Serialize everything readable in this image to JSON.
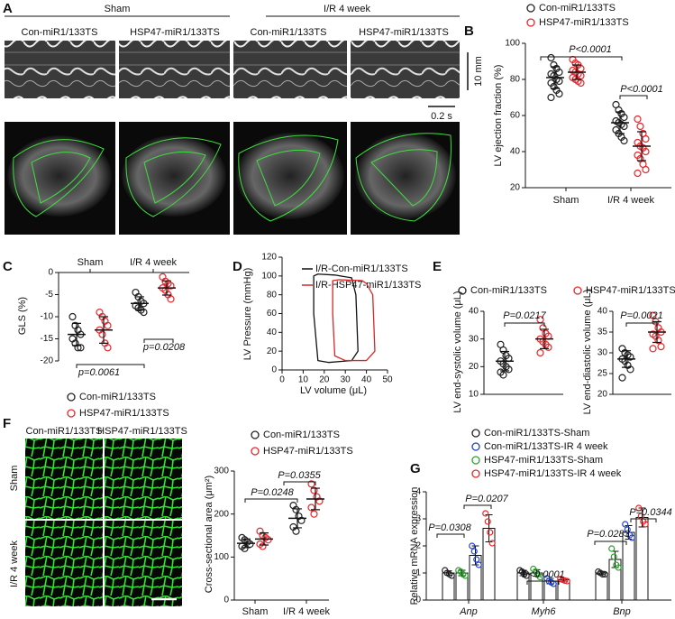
{
  "panel_letters": [
    "A",
    "B",
    "C",
    "D",
    "E",
    "F",
    "G"
  ],
  "panels": {
    "A": {
      "groups": [
        "Sham",
        "I/R 4 week"
      ],
      "columns": [
        "Con-miR1/133TS",
        "HSP47-miR1/133TS",
        "Con-miR1/133TS",
        "HSP47-miR1/133TS"
      ],
      "scale_length": "10 mm",
      "scale_time": "0.2 s"
    },
    "F": {
      "columns": [
        "Con-miR1/133TS",
        "HSP47-miR1/133TS"
      ],
      "rows": [
        "Sham",
        "I/R 4 week"
      ]
    }
  },
  "chart_data": [
    {
      "type": "dot",
      "ylabel": "LV ejection fraction (%)",
      "categories": [
        "Sham",
        "I/R 4 week"
      ],
      "ylim": [
        20,
        100
      ],
      "yticks": [
        20,
        40,
        60,
        80,
        100
      ],
      "series": [
        {
          "name": "Con-miR1/133TS",
          "color": "#222222",
          "values": [
            [
              92,
              88,
              86,
              84,
              83,
              82,
              80,
              79,
              78,
              76,
              74,
              72,
              70
            ],
            [
              66,
              63,
              61,
              59,
              57,
              56,
              55,
              54,
              52,
              50,
              48,
              46
            ]
          ],
          "mean": [
            81,
            56
          ],
          "sd": [
            6,
            6
          ]
        },
        {
          "name": "HSP47-miR1/133TS",
          "color": "#e8262b",
          "values": [
            [
              91,
              89,
              88,
              86,
              85,
              84,
              83,
              82,
              81,
              80,
              79,
              78
            ],
            [
              58,
              54,
              50,
              47,
              45,
              43,
              42,
              40,
              38,
              36,
              33,
              30,
              28
            ]
          ],
          "mean": [
            84,
            43
          ],
          "sd": [
            4,
            8
          ]
        }
      ],
      "annotations": [
        "P<0.0001",
        "P<0.0001"
      ]
    },
    {
      "type": "dot",
      "ylabel": "GLS (%)",
      "categories": [
        "Sham",
        "I/R 4 week"
      ],
      "ylim": [
        -20,
        0
      ],
      "yticks": [
        -20,
        -15,
        -10,
        -5,
        0
      ],
      "series": [
        {
          "name": "Con-miR1/133TS",
          "color": "#222222",
          "values": [
            [
              -10,
              -12,
              -13,
              -14,
              -15,
              -16,
              -17,
              -17
            ],
            [
              -4.5,
              -5.5,
              -6.5,
              -7,
              -7.5,
              -8,
              -8.5,
              -9
            ]
          ],
          "mean": [
            -14,
            -7
          ],
          "sd": [
            2.5,
            1.5
          ]
        },
        {
          "name": "HSP47-miR1/133TS",
          "color": "#e8262b",
          "values": [
            [
              -9,
              -10,
              -11,
              -12,
              -13,
              -14,
              -16,
              -17
            ],
            [
              -1,
              -2,
              -2.5,
              -3,
              -3.5,
              -4,
              -5,
              -6
            ]
          ],
          "mean": [
            -13,
            -3.5
          ],
          "sd": [
            3,
            1.6
          ]
        }
      ],
      "annotations": [
        "p=0.0061",
        "p=0.0208"
      ]
    },
    {
      "type": "line",
      "xlabel": "LV volume (μL)",
      "ylabel": "LV Pressure (mmHg)",
      "xlim": [
        0,
        50
      ],
      "xticks": [
        0,
        10,
        20,
        30,
        40,
        50
      ],
      "ylim": [
        0,
        120
      ],
      "yticks": [
        0,
        20,
        40,
        60,
        80,
        100,
        120
      ],
      "series": [
        {
          "name": "I/R-Con-miR1/133TS",
          "color": "#111111",
          "x": [
            15,
            17,
            25,
            33,
            35,
            36,
            33,
            22,
            17,
            15
          ],
          "values": [
            100,
            102,
            101,
            98,
            80,
            20,
            10,
            8,
            10,
            60
          ]
        },
        {
          "name": "I/R-HSP47-miR1/133TS",
          "color": "#d62728",
          "x": [
            24,
            27,
            38,
            40,
            43,
            44,
            40,
            30,
            25,
            24
          ],
          "values": [
            95,
            96,
            95,
            92,
            80,
            20,
            10,
            10,
            15,
            60
          ]
        }
      ]
    },
    {
      "type": "dot",
      "ylabel": "LV end-systolic volume (μL)",
      "ylim": [
        10,
        40
      ],
      "yticks": [
        10,
        20,
        30,
        40
      ],
      "series": [
        {
          "name": "Con-miR1/133TS",
          "color": "#222222",
          "values": [
            [
              28,
              26,
              24,
              23,
              22,
              21,
              20,
              19,
              18,
              17
            ]
          ],
          "mean": [
            22
          ],
          "sd": [
            3.5
          ]
        },
        {
          "name": "HSP47-miR1/133TS",
          "color": "#e8262b",
          "values": [
            [
              37,
              34,
              32,
              31,
              30,
              29,
              28,
              27,
              25
            ]
          ],
          "mean": [
            30
          ],
          "sd": [
            3.5
          ]
        }
      ],
      "annotations": [
        "P=0.0217"
      ]
    },
    {
      "type": "dot",
      "ylabel": "LV end-diastolic volume (μL)",
      "ylim": [
        20,
        40
      ],
      "yticks": [
        20,
        25,
        30,
        35,
        40
      ],
      "series": [
        {
          "color": "#222222",
          "values": [
            [
              31,
              30,
              29.5,
              29,
              28.5,
              28,
              27,
              26,
              24
            ]
          ],
          "mean": [
            28.5
          ],
          "sd": [
            2
          ]
        },
        {
          "color": "#e8262b",
          "values": [
            [
              39,
              37.5,
              36,
              35,
              34.5,
              34,
              33,
              31.5,
              31
            ]
          ],
          "mean": [
            35
          ],
          "sd": [
            2.5
          ]
        }
      ],
      "annotations": [
        "P=0.0021"
      ]
    },
    {
      "type": "dot",
      "ylabel": "Cross-sectional area (μm²)",
      "categories": [
        "Sham",
        "I/R 4 week"
      ],
      "ylim": [
        0,
        300
      ],
      "yticks": [
        0,
        100,
        200,
        300
      ],
      "series": [
        {
          "name": "Con-miR1/133TS",
          "color": "#222222",
          "values": [
            [
              145,
              140,
              135,
              130,
              125,
              120
            ],
            [
              220,
              210,
              195,
              185,
              170,
              160
            ]
          ],
          "mean": [
            132,
            190
          ],
          "sd": [
            10,
            22
          ]
        },
        {
          "name": "HSP47-miR1/133TS",
          "color": "#e8262b",
          "values": [
            [
              160,
              150,
              145,
              140,
              130,
              125
            ],
            [
              270,
              255,
              240,
              230,
              215,
              200
            ]
          ],
          "mean": [
            142,
            235
          ],
          "sd": [
            14,
            25
          ]
        }
      ],
      "annotations": [
        "P=0.0248",
        "P=0.0355"
      ]
    },
    {
      "type": "bar",
      "ylabel": "Relative mRNA expression",
      "categories": [
        "Anp",
        "Myh6",
        "Bnp"
      ],
      "ylim": [
        0,
        4
      ],
      "yticks": [
        0,
        1,
        2,
        3,
        4
      ],
      "series": [
        {
          "name": "Con-miR1/133TS-Sham",
          "color": "#222222",
          "values": [
            1,
            1,
            1
          ],
          "errors": [
            0.08,
            0.1,
            0.06
          ],
          "points": [
            [
              1.1,
              1.0,
              0.95,
              0.9
            ],
            [
              1.1,
              1.05,
              0.95,
              0.9
            ],
            [
              1.05,
              1.0,
              0.95,
              0.95
            ]
          ]
        },
        {
          "name": "Con-miR1/133TS-IR 4 week",
          "color": "#2040d0",
          "values": [
            1.65,
            0.7,
            2.5
          ],
          "errors": [
            0.35,
            0.1,
            0.25
          ],
          "points": [
            [
              2.0,
              1.8,
              1.5,
              1.3
            ],
            [
              0.8,
              0.7,
              0.65,
              0.6
            ],
            [
              2.8,
              2.6,
              2.4,
              2.3
            ]
          ]
        },
        {
          "name": "HSP47-miR1/133TS-Sham",
          "color": "#2ca02c",
          "values": [
            1,
            1,
            1.5
          ],
          "errors": [
            0.1,
            0.12,
            0.3
          ],
          "points": [
            [
              1.1,
              1.05,
              0.95,
              0.9
            ],
            [
              1.15,
              1.05,
              0.95,
              0.85
            ],
            [
              1.9,
              1.6,
              1.3,
              1.2
            ]
          ]
        },
        {
          "name": "HSP47-miR1/133TS-IR 4 week",
          "color": "#e8262b",
          "values": [
            2.65,
            0.75,
            3.05
          ],
          "errors": [
            0.5,
            0.05,
            0.35
          ],
          "points": [
            [
              3.2,
              2.9,
              2.5,
              2.1
            ],
            [
              0.78,
              0.75,
              0.72,
              0.7
            ],
            [
              3.4,
              3.1,
              2.9,
              2.8
            ]
          ]
        }
      ],
      "annotations": [
        "P=0.0308",
        "P=0.0207",
        "P<0.0001",
        "P=0.0283",
        "P=0.0344"
      ]
    }
  ]
}
